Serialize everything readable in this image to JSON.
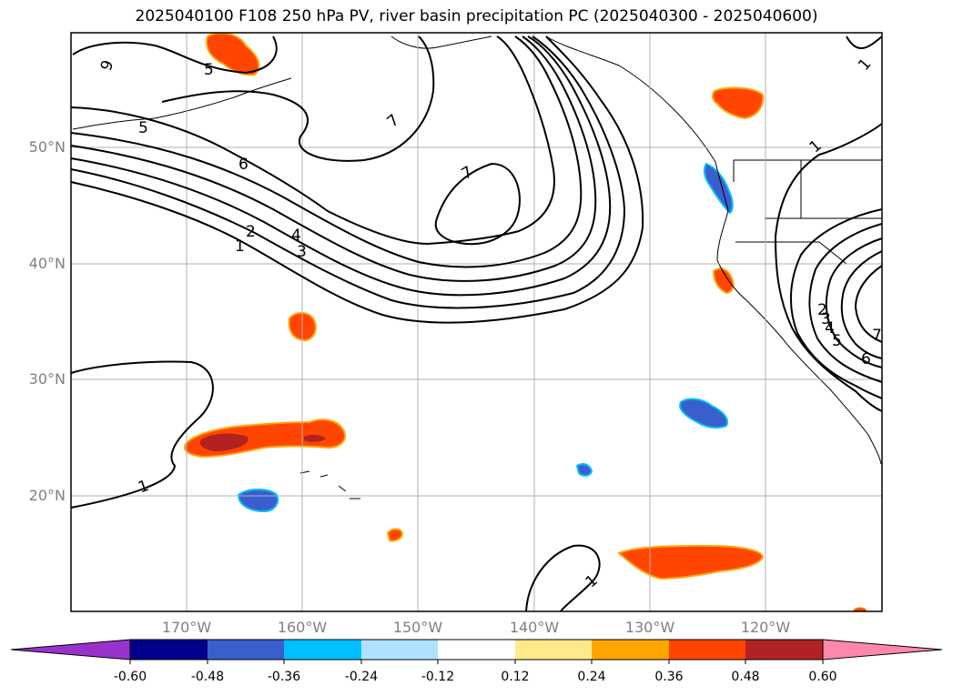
{
  "title": "2025040100 F108 250 hPa PV, river basin precipitation PC (2025040300 - 2025040600)",
  "map": {
    "lon_range": [
      -180,
      -110
    ],
    "lat_range": [
      10,
      60
    ],
    "lat_labels": [
      "50°N",
      "40°N",
      "30°N",
      "20°N"
    ],
    "lat_values": [
      50,
      40,
      30,
      20
    ],
    "lon_labels": [
      "170°W",
      "160°W",
      "150°W",
      "140°W",
      "130°W",
      "120°W"
    ],
    "lon_values": [
      -170,
      -160,
      -150,
      -140,
      -130,
      -120
    ],
    "grid": true
  },
  "contour_labels": [
    "9",
    "5",
    "7",
    "5",
    "6",
    "7",
    "2",
    "4",
    "3",
    "1",
    "1",
    "1",
    "1",
    "2",
    "3",
    "4",
    "5",
    "6",
    "7",
    "1"
  ],
  "colorbar": {
    "ticks": [
      "-0.60",
      "-0.48",
      "-0.36",
      "-0.24",
      "-0.12",
      "0.12",
      "0.24",
      "0.36",
      "0.48",
      "0.60"
    ],
    "colors": [
      "#9932cc",
      "#00008b",
      "#3a5fcd",
      "#00bfff",
      "#b0e2ff",
      "#ffffff",
      "#ffe98a",
      "#ffa500",
      "#ff4500",
      "#b22222",
      "#ff88aa"
    ],
    "extend": "both"
  },
  "precip_regions": [
    {
      "id": "ak-pos",
      "sign": "positive",
      "level": 0.36
    },
    {
      "id": "bc-pos",
      "sign": "positive",
      "level": 0.36
    },
    {
      "id": "wa-neg",
      "sign": "negative",
      "level": -0.36
    },
    {
      "id": "ca-pos",
      "sign": "positive",
      "level": 0.36
    },
    {
      "id": "pac34-pos",
      "sign": "positive",
      "level": 0.36
    },
    {
      "id": "pac25-pos",
      "sign": "positive",
      "level": 0.48
    },
    {
      "id": "pac20-neg",
      "sign": "negative",
      "level": -0.36
    },
    {
      "id": "pac17-pos",
      "sign": "positive",
      "level": 0.36
    },
    {
      "id": "pac28-neg",
      "sign": "negative",
      "level": -0.36
    },
    {
      "id": "pac22-neg",
      "sign": "negative",
      "level": -0.36
    },
    {
      "id": "pac15-pos",
      "sign": "positive",
      "level": 0.36
    }
  ]
}
